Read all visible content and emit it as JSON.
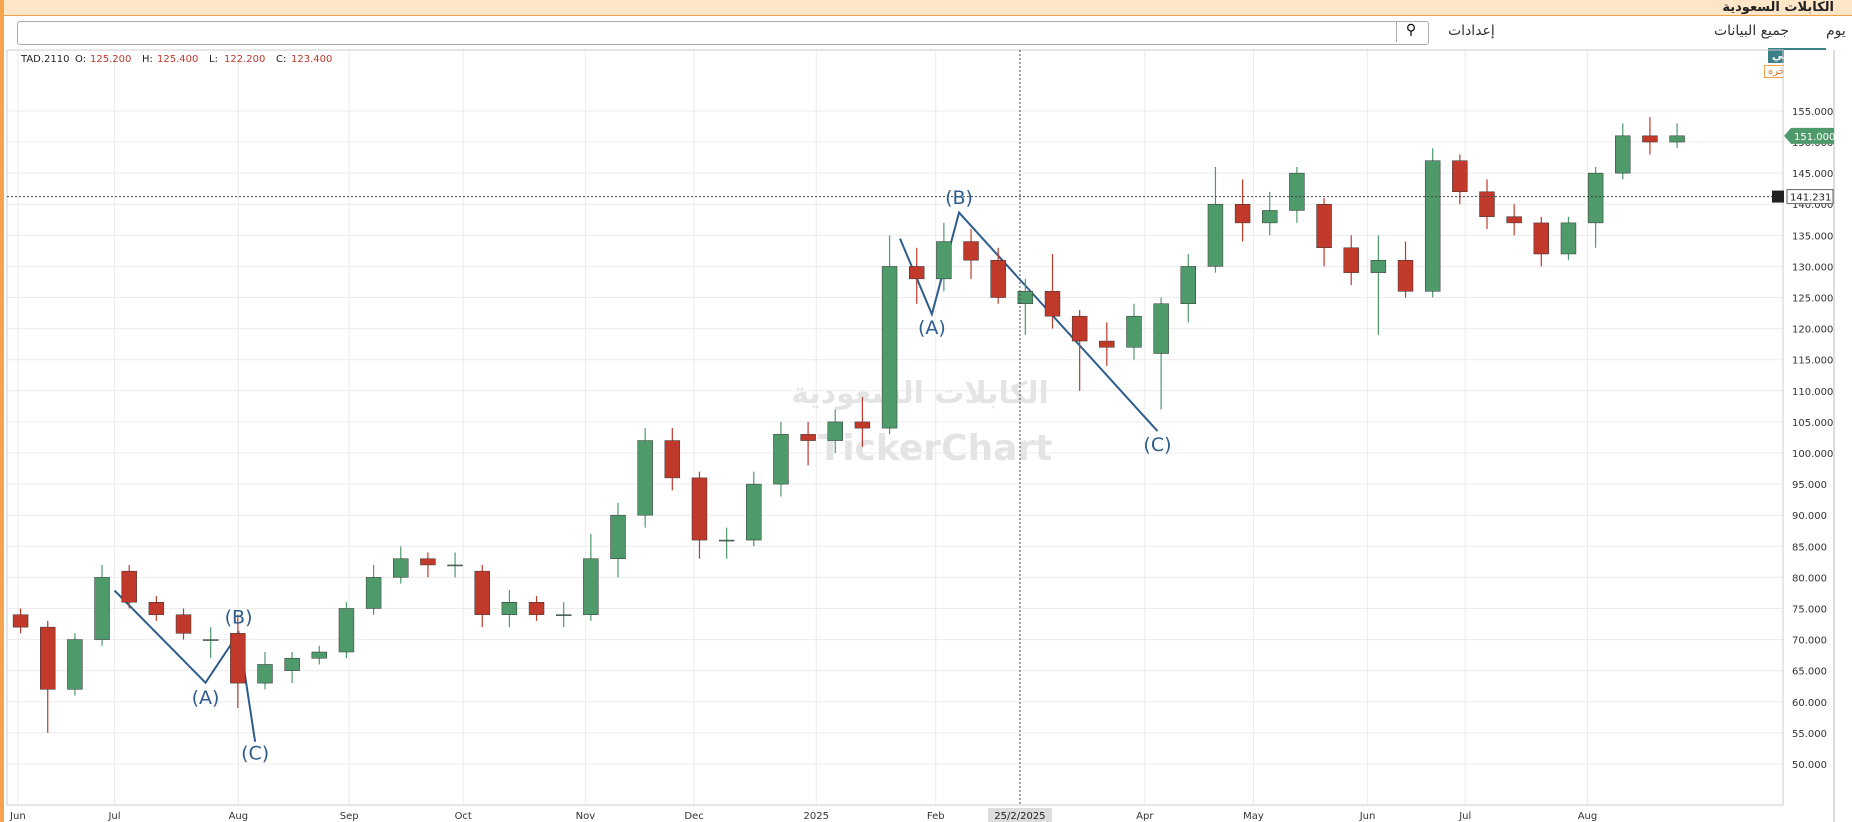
{
  "header": {
    "title": "الكابلات السعودية",
    "settings": "إعدادات",
    "all_data": "جميع البيانات",
    "period": "يوم"
  },
  "badges": {
    "my_charts": "رسوماتي",
    "delayed": "البيانات متأخره"
  },
  "watermark": {
    "arabic": "الكابلات السعودية",
    "latin": "TickerChart"
  },
  "chart_data": {
    "type": "candlestick",
    "symbol": "TAD.2110",
    "ohlc_legend": [
      {
        "label": "O:",
        "value": "125.200"
      },
      {
        "label": "H:",
        "value": "125.400"
      },
      {
        "label": "L:",
        "value": "122.200"
      },
      {
        "label": "C:",
        "value": "123.400"
      }
    ],
    "up_color": "#4f9a6b",
    "down_color": "#c0392b",
    "grid": true,
    "ylim": [
      43.4,
      164.8
    ],
    "yticks": [
      {
        "value": 50,
        "label": "50.000"
      },
      {
        "value": 55,
        "label": "55.000"
      },
      {
        "value": 60,
        "label": "60.000"
      },
      {
        "value": 65,
        "label": "65.000"
      },
      {
        "value": 70,
        "label": "70.000"
      },
      {
        "value": 75,
        "label": "75.000"
      },
      {
        "value": 80,
        "label": "80.000"
      },
      {
        "value": 85,
        "label": "85.000"
      },
      {
        "value": 90,
        "label": "90.000"
      },
      {
        "value": 95,
        "label": "95.000"
      },
      {
        "value": 100,
        "label": "100.000"
      },
      {
        "value": 105,
        "label": "105.000"
      },
      {
        "value": 110,
        "label": "110.000"
      },
      {
        "value": 115,
        "label": "115.000"
      },
      {
        "value": 120,
        "label": "120.000"
      },
      {
        "value": 125,
        "label": "125.000"
      },
      {
        "value": 130,
        "label": "130.000"
      },
      {
        "value": 135,
        "label": "135.000"
      },
      {
        "value": 140,
        "label": "140.000"
      },
      {
        "value": 145,
        "label": "145.000"
      },
      {
        "value": 150,
        "label": "150.000"
      },
      {
        "value": 155,
        "label": "155.000"
      }
    ],
    "xlim": [
      0,
      65.4
    ],
    "xticks": [
      {
        "value": 0.4,
        "label": "Jun"
      },
      {
        "value": 3.96,
        "label": "Jul"
      },
      {
        "value": 8.52,
        "label": "Aug"
      },
      {
        "value": 12.6,
        "label": "Sep"
      },
      {
        "value": 16.8,
        "label": "Oct"
      },
      {
        "value": 21.3,
        "label": "Nov"
      },
      {
        "value": 25.3,
        "label": "Dec"
      },
      {
        "value": 29.8,
        "label": "2025"
      },
      {
        "value": 34.2,
        "label": "Feb"
      },
      {
        "value": 41.9,
        "label": "Apr"
      },
      {
        "value": 45.9,
        "label": "May"
      },
      {
        "value": 50.1,
        "label": "Jun"
      },
      {
        "value": 53.7,
        "label": "Jul"
      },
      {
        "value": 58.2,
        "label": "Aug"
      }
    ],
    "crosshair": {
      "x": {
        "value": 37.3,
        "label": "25/2/2025"
      },
      "y": {
        "value": 141.231,
        "label": "141.231"
      }
    },
    "last_price": {
      "value": 151,
      "label": "151.000"
    },
    "annotations": [
      "(A)",
      "(B)",
      "(C)",
      "(A)",
      "(B)",
      "(C)"
    ],
    "candles": [
      {
        "open": 74,
        "high": 75,
        "low": 71,
        "close": 72
      },
      {
        "open": 72,
        "high": 73,
        "low": 55,
        "close": 62
      },
      {
        "open": 62,
        "high": 71,
        "low": 61,
        "close": 70
      },
      {
        "open": 70,
        "high": 82,
        "low": 69,
        "close": 80
      },
      {
        "open": 81,
        "high": 82,
        "low": 75,
        "close": 76
      },
      {
        "open": 76,
        "high": 77,
        "low": 73,
        "close": 74
      },
      {
        "open": 74,
        "high": 75,
        "low": 70,
        "close": 71
      },
      {
        "open": 70,
        "high": 72,
        "low": 67,
        "close": 70
      },
      {
        "open": 71,
        "high": 74,
        "low": 59,
        "close": 63
      },
      {
        "open": 63,
        "high": 68,
        "low": 62,
        "close": 66
      },
      {
        "open": 65,
        "high": 68,
        "low": 63,
        "close": 67
      },
      {
        "open": 67,
        "high": 69,
        "low": 66,
        "close": 68
      },
      {
        "open": 68,
        "high": 76,
        "low": 67,
        "close": 75
      },
      {
        "open": 75,
        "high": 82,
        "low": 74,
        "close": 80
      },
      {
        "open": 80,
        "high": 85,
        "low": 79,
        "close": 83
      },
      {
        "open": 83,
        "high": 84,
        "low": 80,
        "close": 82
      },
      {
        "open": 82,
        "high": 84,
        "low": 80,
        "close": 82
      },
      {
        "open": 81,
        "high": 82,
        "low": 72,
        "close": 74
      },
      {
        "open": 74,
        "high": 78,
        "low": 72,
        "close": 76
      },
      {
        "open": 76,
        "high": 77,
        "low": 73,
        "close": 74
      },
      {
        "open": 74,
        "high": 76,
        "low": 72,
        "close": 74
      },
      {
        "open": 74,
        "high": 87,
        "low": 73,
        "close": 83
      },
      {
        "open": 83,
        "high": 92,
        "low": 80,
        "close": 90
      },
      {
        "open": 90,
        "high": 104,
        "low": 88,
        "close": 102
      },
      {
        "open": 102,
        "high": 104,
        "low": 94,
        "close": 96
      },
      {
        "open": 96,
        "high": 97,
        "low": 83,
        "close": 86
      },
      {
        "open": 86,
        "high": 88,
        "low": 83,
        "close": 86
      },
      {
        "open": 86,
        "high": 97,
        "low": 85,
        "close": 95
      },
      {
        "open": 95,
        "high": 105,
        "low": 93,
        "close": 103
      },
      {
        "open": 103,
        "high": 105,
        "low": 98,
        "close": 102
      },
      {
        "open": 102,
        "high": 107,
        "low": 100,
        "close": 105
      },
      {
        "open": 105,
        "high": 109,
        "low": 101,
        "close": 104
      },
      {
        "open": 104,
        "high": 135,
        "low": 103,
        "close": 130
      },
      {
        "open": 130,
        "high": 133,
        "low": 124,
        "close": 128
      },
      {
        "open": 128,
        "high": 137,
        "low": 126,
        "close": 134
      },
      {
        "open": 134,
        "high": 136,
        "low": 128,
        "close": 131
      },
      {
        "open": 131,
        "high": 133,
        "low": 124,
        "close": 125
      },
      {
        "open": 124,
        "high": 128,
        "low": 119,
        "close": 126
      },
      {
        "open": 126,
        "high": 132,
        "low": 120,
        "close": 122
      },
      {
        "open": 122,
        "high": 123,
        "low": 110,
        "close": 118
      },
      {
        "open": 118,
        "high": 121,
        "low": 114,
        "close": 117
      },
      {
        "open": 117,
        "high": 124,
        "low": 115,
        "close": 122
      },
      {
        "open": 116,
        "high": 125,
        "low": 107,
        "close": 124
      },
      {
        "open": 124,
        "high": 132,
        "low": 121,
        "close": 130
      },
      {
        "open": 130,
        "high": 146,
        "low": 129,
        "close": 140
      },
      {
        "open": 140,
        "high": 144,
        "low": 134,
        "close": 137
      },
      {
        "open": 137,
        "high": 142,
        "low": 135,
        "close": 139
      },
      {
        "open": 139,
        "high": 146,
        "low": 137,
        "close": 145
      },
      {
        "open": 140,
        "high": 141,
        "low": 130,
        "close": 133
      },
      {
        "open": 133,
        "high": 135,
        "low": 127,
        "close": 129
      },
      {
        "open": 129,
        "high": 135,
        "low": 119,
        "close": 131
      },
      {
        "open": 131,
        "high": 134,
        "low": 125,
        "close": 126
      },
      {
        "open": 126,
        "high": 149,
        "low": 125,
        "close": 147
      },
      {
        "open": 147,
        "high": 148,
        "low": 140,
        "close": 142
      },
      {
        "open": 142,
        "high": 144,
        "low": 136,
        "close": 138
      },
      {
        "open": 138,
        "high": 140,
        "low": 135,
        "close": 137
      },
      {
        "open": 137,
        "high": 138,
        "low": 130,
        "close": 132
      },
      {
        "open": 132,
        "high": 138,
        "low": 131,
        "close": 137
      },
      {
        "open": 137,
        "high": 146,
        "low": 133,
        "close": 145
      },
      {
        "open": 145,
        "high": 153,
        "low": 144,
        "close": 151
      },
      {
        "open": 151,
        "high": 154,
        "low": 148,
        "close": 150
      },
      {
        "open": 150,
        "high": 153,
        "low": 149,
        "close": 151
      }
    ]
  }
}
